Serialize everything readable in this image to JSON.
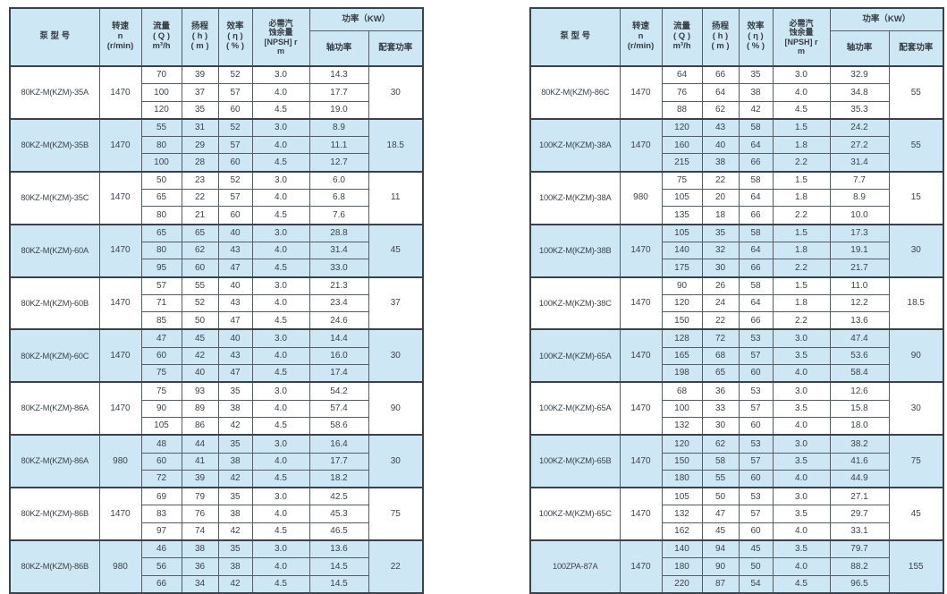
{
  "page": {
    "background": "#ffffff"
  },
  "colors": {
    "header_bg": "#cde8f4",
    "shaded_row_bg": "#cde8f4",
    "row_bg": "#ffffff",
    "border_dark": "#39424c",
    "border_light": "#535d66",
    "text": "#3c434a"
  },
  "header": {
    "model": "泵  型  号",
    "speed": "转速\nn\n(r/min)",
    "flow": "流量\n( Q )\nm³/h",
    "head": "扬程\n( h )\n( m )",
    "efficiency": "效率\n( η )\n( % )",
    "npsh": "必需汽\n蚀余量\n[NPSH] r\nm",
    "power": "功率（KW）",
    "shaft": "轴功率",
    "rated": "配套功率"
  },
  "tables": [
    {
      "id": "left",
      "groups": [
        {
          "model": "80KZ-M(KZM)-35A",
          "speed": "1470",
          "shaded": false,
          "rated": "30",
          "rows": [
            [
              "70",
              "39",
              "52",
              "3.0",
              "14.3"
            ],
            [
              "100",
              "37",
              "57",
              "4.0",
              "17.7"
            ],
            [
              "120",
              "35",
              "60",
              "4.5",
              "19.0"
            ]
          ]
        },
        {
          "model": "80KZ-M(KZM)-35B",
          "speed": "1470",
          "shaded": true,
          "rated": "18.5",
          "rows": [
            [
              "55",
              "31",
              "52",
              "3.0",
              "8.9"
            ],
            [
              "80",
              "29",
              "57",
              "4.0",
              "11.1"
            ],
            [
              "100",
              "28",
              "60",
              "4.5",
              "12.7"
            ]
          ]
        },
        {
          "model": "80KZ-M(KZM)-35C",
          "speed": "1470",
          "shaded": false,
          "rated": "11",
          "rows": [
            [
              "50",
              "23",
              "52",
              "3.0",
              "6.0"
            ],
            [
              "65",
              "22",
              "57",
              "4.0",
              "6.8"
            ],
            [
              "80",
              "21",
              "60",
              "4.5",
              "7.6"
            ]
          ]
        },
        {
          "model": "80KZ-M(KZM)-60A",
          "speed": "1470",
          "shaded": true,
          "rated": "45",
          "rows": [
            [
              "65",
              "65",
              "40",
              "3.0",
              "28.8"
            ],
            [
              "80",
              "62",
              "43",
              "4.0",
              "31.4"
            ],
            [
              "95",
              "60",
              "47",
              "4.5",
              "33.0"
            ]
          ]
        },
        {
          "model": "80KZ-M(KZM)-60B",
          "speed": "1470",
          "shaded": false,
          "rated": "37",
          "rows": [
            [
              "57",
              "55",
              "40",
              "3.0",
              "21.3"
            ],
            [
              "71",
              "52",
              "43",
              "4.0",
              "23.4"
            ],
            [
              "85",
              "50",
              "47",
              "4.5",
              "24.6"
            ]
          ]
        },
        {
          "model": "80KZ-M(KZM)-60C",
          "speed": "1470",
          "shaded": true,
          "rated": "30",
          "rows": [
            [
              "47",
              "45",
              "40",
              "3.0",
              "14.4"
            ],
            [
              "60",
              "42",
              "43",
              "4.0",
              "16.0"
            ],
            [
              "75",
              "40",
              "47",
              "4.5",
              "17.4"
            ]
          ]
        },
        {
          "model": "80KZ-M(KZM)-86A",
          "speed": "1470",
          "shaded": false,
          "rated": "90",
          "rows": [
            [
              "75",
              "93",
              "35",
              "3.0",
              "54.2"
            ],
            [
              "90",
              "89",
              "38",
              "4.0",
              "57.4"
            ],
            [
              "105",
              "86",
              "42",
              "4.5",
              "58.6"
            ]
          ]
        },
        {
          "model": "80KZ-M(KZM)-86A",
          "speed": "980",
          "shaded": true,
          "rated": "30",
          "rows": [
            [
              "48",
              "44",
              "35",
              "3.0",
              "16.4"
            ],
            [
              "60",
              "41",
              "38",
              "4.0",
              "17.7"
            ],
            [
              "72",
              "39",
              "42",
              "4.5",
              "18.2"
            ]
          ]
        },
        {
          "model": "80KZ-M(KZM)-86B",
          "speed": "1470",
          "shaded": false,
          "rated": "75",
          "rows": [
            [
              "69",
              "79",
              "35",
              "3.0",
              "42.5"
            ],
            [
              "83",
              "76",
              "38",
              "4.0",
              "45.3"
            ],
            [
              "97",
              "74",
              "42",
              "4.5",
              "46.5"
            ]
          ]
        },
        {
          "model": "80KZ-M(KZM)-86B",
          "speed": "980",
          "shaded": true,
          "rated": "22",
          "rows": [
            [
              "46",
              "38",
              "35",
              "3.0",
              "13.6"
            ],
            [
              "56",
              "36",
              "38",
              "4.0",
              "14.5"
            ],
            [
              "66",
              "34",
              "42",
              "4.5",
              "14.5"
            ]
          ]
        }
      ]
    },
    {
      "id": "right",
      "groups": [
        {
          "model": "80KZ-M(KZM)-86C",
          "speed": "1470",
          "shaded": false,
          "rated": "55",
          "rows": [
            [
              "64",
              "66",
              "35",
              "3.0",
              "32.9"
            ],
            [
              "76",
              "64",
              "38",
              "4.0",
              "34.8"
            ],
            [
              "88",
              "62",
              "42",
              "4.5",
              "35.3"
            ]
          ]
        },
        {
          "model": "100KZ-M(KZM)-38A",
          "speed": "1470",
          "shaded": true,
          "rated": "55",
          "rows": [
            [
              "120",
              "43",
              "58",
              "1.5",
              "24.2"
            ],
            [
              "160",
              "40",
              "64",
              "1.8",
              "27.2"
            ],
            [
              "215",
              "38",
              "66",
              "2.2",
              "31.4"
            ]
          ]
        },
        {
          "model": "100KZ-M(KZM)-38A",
          "speed": "980",
          "shaded": false,
          "rated": "15",
          "rows": [
            [
              "75",
              "22",
              "58",
              "1.5",
              "7.7"
            ],
            [
              "105",
              "20",
              "64",
              "1.8",
              "8.9"
            ],
            [
              "135",
              "18",
              "66",
              "2.2",
              "10.0"
            ]
          ]
        },
        {
          "model": "100KZ-M(KZM)-38B",
          "speed": "1470",
          "shaded": true,
          "rated": "30",
          "rows": [
            [
              "105",
              "35",
              "58",
              "1.5",
              "17.3"
            ],
            [
              "140",
              "32",
              "64",
              "1.8",
              "19.1"
            ],
            [
              "175",
              "30",
              "66",
              "2.2",
              "21.7"
            ]
          ]
        },
        {
          "model": "100KZ-M(KZM)-38C",
          "speed": "1470",
          "shaded": false,
          "rated": "18.5",
          "rows": [
            [
              "90",
              "26",
              "58",
              "1.5",
              "11.0"
            ],
            [
              "120",
              "24",
              "64",
              "1.8",
              "12.2"
            ],
            [
              "150",
              "22",
              "66",
              "2.2",
              "13.6"
            ]
          ]
        },
        {
          "model": "100KZ-M(KZM)-65A",
          "speed": "1470",
          "shaded": true,
          "rated": "90",
          "rows": [
            [
              "128",
              "72",
              "53",
              "3.0",
              "47.4"
            ],
            [
              "165",
              "68",
              "57",
              "3.5",
              "53.6"
            ],
            [
              "198",
              "65",
              "60",
              "4.0",
              "58.4"
            ]
          ]
        },
        {
          "model": "100KZ-M(KZM)-65A",
          "speed": "1470",
          "shaded": false,
          "rated": "30",
          "rows": [
            [
              "68",
              "36",
              "53",
              "3.0",
              "12.6"
            ],
            [
              "100",
              "33",
              "57",
              "3.5",
              "15.8"
            ],
            [
              "132",
              "30",
              "60",
              "4.0",
              "18.0"
            ]
          ]
        },
        {
          "model": "100KZ-M(KZM)-65B",
          "speed": "1470",
          "shaded": true,
          "rated": "75",
          "rows": [
            [
              "120",
              "62",
              "53",
              "3.0",
              "38.2"
            ],
            [
              "150",
              "58",
              "57",
              "3.5",
              "41.6"
            ],
            [
              "180",
              "55",
              "60",
              "4.0",
              "44.9"
            ]
          ]
        },
        {
          "model": "100KZ-M(KZM)-65C",
          "speed": "1470",
          "shaded": false,
          "rated": "45",
          "rows": [
            [
              "105",
              "50",
              "53",
              "3.0",
              "27.1"
            ],
            [
              "132",
              "47",
              "57",
              "3.5",
              "29.7"
            ],
            [
              "162",
              "45",
              "60",
              "4.0",
              "33.1"
            ]
          ]
        },
        {
          "model": "100ZPA-87A",
          "speed": "1470",
          "shaded": true,
          "rated": "155",
          "rows": [
            [
              "140",
              "94",
              "45",
              "3.5",
              "79.7"
            ],
            [
              "180",
              "90",
              "50",
              "4.0",
              "88.2"
            ],
            [
              "220",
              "87",
              "54",
              "4.5",
              "96.5"
            ]
          ]
        }
      ]
    }
  ]
}
